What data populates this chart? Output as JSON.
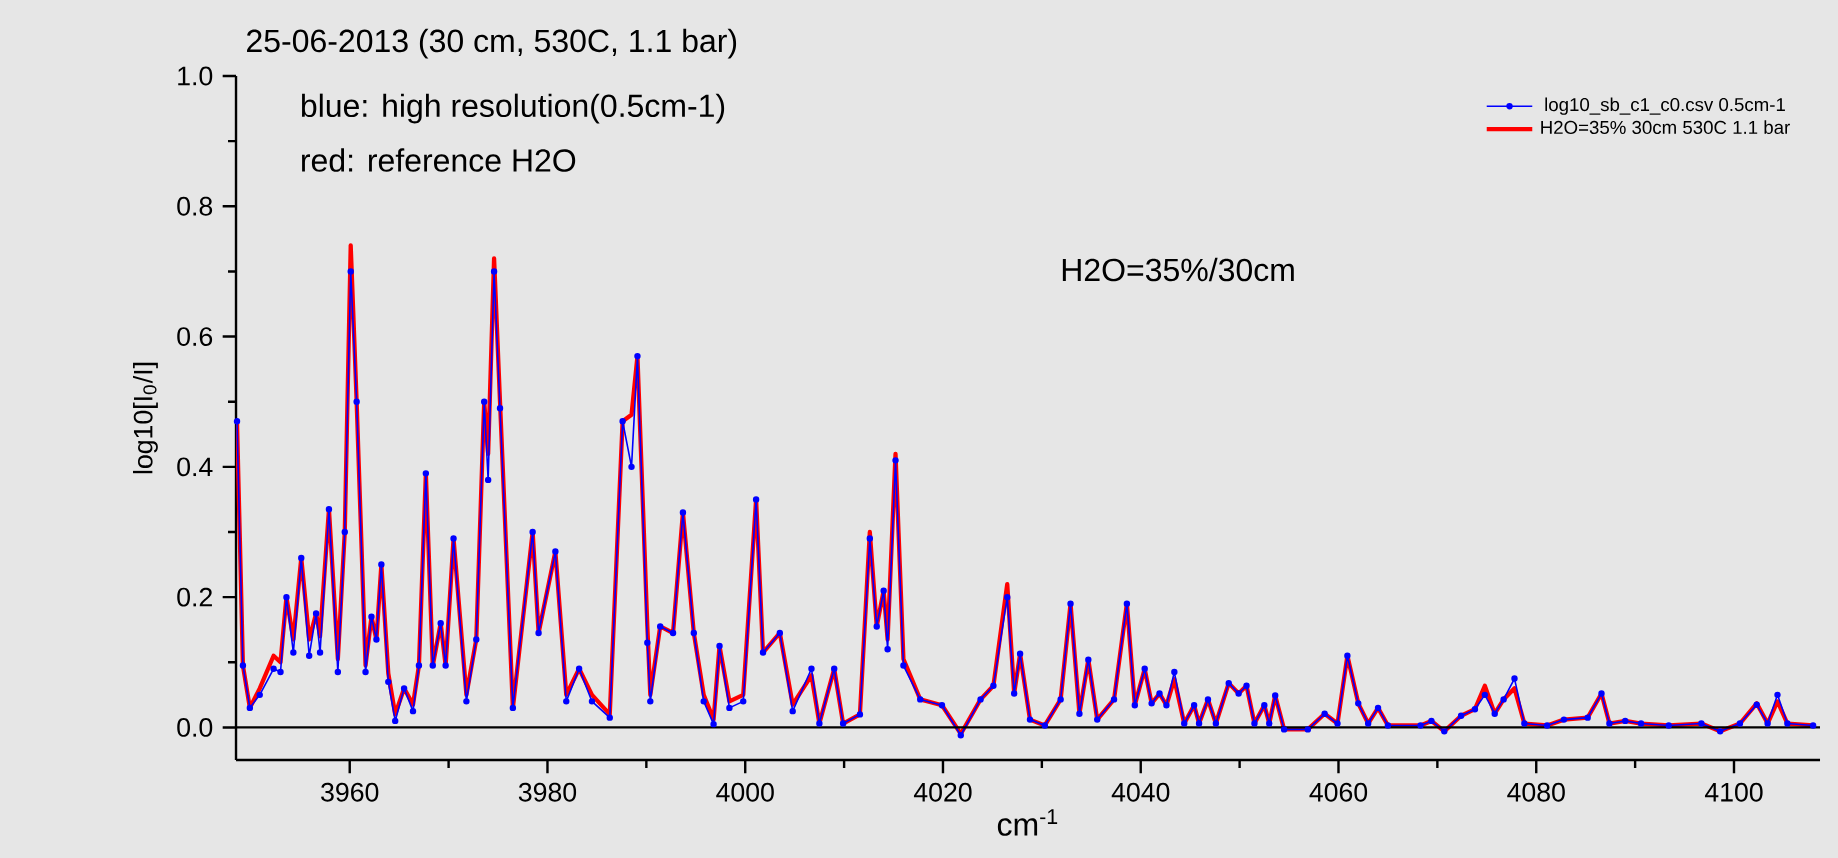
{
  "chart_data": {
    "type": "line",
    "title": "25-06-2013 (30 cm, 530C, 1.1 bar)",
    "xlabel": "cm$^{-1}$",
    "ylabel": "log10[I$_{0}$/I]",
    "annotations": [
      "blue: high resolution(0.5cm-1)",
      "red: reference H2O",
      "H2O=35%/30cm"
    ],
    "xlim": [
      3948.5,
      4108.7
    ],
    "ylim": [
      -0.05,
      1.0
    ],
    "xticks": [
      3960,
      3980,
      4000,
      4020,
      4040,
      4060,
      4080,
      4100
    ],
    "yticks": [
      {
        "value": 0,
        "label": "0.0"
      },
      0.2,
      0.4,
      0.6,
      0.8,
      {
        "value": 1,
        "label": "1.0"
      }
    ],
    "legend": "top right",
    "ref_lines": [
      {
        "axis": "y",
        "value": 0,
        "color": "#000000"
      }
    ],
    "x": [
      3948.6,
      3949.2,
      3949.9,
      3950.9,
      3952.3,
      3953.0,
      3953.6,
      3954.3,
      3955.1,
      3955.9,
      3956.6,
      3957.0,
      3957.9,
      3958.8,
      3959.5,
      3960.1,
      3960.7,
      3961.6,
      3962.2,
      3962.7,
      3963.2,
      3963.9,
      3964.6,
      3965.5,
      3966.4,
      3967.0,
      3967.7,
      3968.4,
      3969.2,
      3969.7,
      3970.5,
      3971.8,
      3972.8,
      3973.6,
      3974.0,
      3974.6,
      3975.2,
      3976.5,
      3978.5,
      3979.1,
      3980.8,
      3981.9,
      3983.2,
      3984.5,
      3986.3,
      3987.6,
      3988.5,
      3989.1,
      3990.1,
      3990.4,
      3991.4,
      3992.7,
      3993.7,
      3994.8,
      3995.8,
      3996.8,
      3997.4,
      3998.4,
      3999.8,
      4001.1,
      4001.8,
      4003.5,
      4004.8,
      4006.7,
      4007.5,
      4009.0,
      4009.9,
      4011.6,
      4012.6,
      4013.3,
      4014.0,
      4014.4,
      4015.2,
      4016.0,
      4017.7,
      4019.9,
      4021.8,
      4023.8,
      4025.1,
      4026.5,
      4027.2,
      4027.8,
      4028.8,
      4030.3,
      4031.9,
      4032.9,
      4033.8,
      4034.7,
      4035.6,
      4037.3,
      4038.6,
      4039.4,
      4040.4,
      4041.1,
      4041.9,
      4042.6,
      4043.4,
      4044.4,
      4045.4,
      4045.9,
      4046.8,
      4047.6,
      4048.9,
      4049.9,
      4050.7,
      4051.5,
      4052.5,
      4053.0,
      4053.6,
      4054.5,
      4056.9,
      4058.6,
      4059.9,
      4060.9,
      4062.0,
      4063.0,
      4064.0,
      4065.0,
      4068.3,
      4069.4,
      4070.7,
      4072.4,
      4073.8,
      4074.8,
      4075.8,
      4076.7,
      4077.8,
      4078.8,
      4081.1,
      4082.8,
      4085.2,
      4086.6,
      4087.4,
      4089.0,
      4090.6,
      4093.4,
      4096.7,
      4098.6,
      4100.6,
      4102.3,
      4103.4,
      4104.4,
      4105.4,
      4108.0
    ],
    "series": [
      {
        "name": "log10_sb_c1_c0.csv 0.5cm-1",
        "color": "#0000ff",
        "marker": "circle",
        "values": [
          0.47,
          0.095,
          0.03,
          0.05,
          0.09,
          0.085,
          0.2,
          0.115,
          0.26,
          0.11,
          0.175,
          0.115,
          0.335,
          0.085,
          0.3,
          0.7,
          0.5,
          0.085,
          0.17,
          0.135,
          0.25,
          0.07,
          0.01,
          0.06,
          0.025,
          0.095,
          0.39,
          0.095,
          0.16,
          0.095,
          0.29,
          0.04,
          0.135,
          0.5,
          0.38,
          0.7,
          0.49,
          0.03,
          0.3,
          0.145,
          0.27,
          0.04,
          0.09,
          0.04,
          0.015,
          0.47,
          0.4,
          0.57,
          0.13,
          0.04,
          0.155,
          0.145,
          0.33,
          0.145,
          0.04,
          0.005,
          0.125,
          0.03,
          0.04,
          0.35,
          0.115,
          0.145,
          0.025,
          0.09,
          0.006,
          0.09,
          0.006,
          0.02,
          0.29,
          0.155,
          0.21,
          0.12,
          0.41,
          0.095,
          0.043,
          0.034,
          -0.012,
          0.043,
          0.064,
          0.2,
          0.052,
          0.113,
          0.012,
          0.003,
          0.043,
          0.19,
          0.021,
          0.104,
          0.012,
          0.043,
          0.19,
          0.034,
          0.09,
          0.037,
          0.052,
          0.034,
          0.085,
          0.006,
          0.034,
          0.006,
          0.043,
          0.006,
          0.068,
          0.052,
          0.064,
          0.006,
          0.034,
          0.006,
          0.049,
          -0.003,
          -0.003,
          0.021,
          0.006,
          0.11,
          0.037,
          0.006,
          0.03,
          0.003,
          0.003,
          0.01,
          -0.006,
          0.018,
          0.028,
          0.05,
          0.021,
          0.043,
          0.075,
          0.006,
          0.003,
          0.012,
          0.015,
          0.052,
          0.006,
          0.01,
          0.006,
          0.003,
          0.006,
          -0.006,
          0.006,
          0.035,
          0.006,
          0.05,
          0.006,
          0.003
        ]
      },
      {
        "name": "H2O=35% 30cm 530C 1.1 bar",
        "color": "#ff0000",
        "marker": "none",
        "values": [
          0.47,
          0.095,
          0.03,
          0.06,
          0.11,
          0.1,
          0.2,
          0.135,
          0.26,
          0.135,
          0.175,
          0.14,
          0.335,
          0.105,
          0.3,
          0.74,
          0.5,
          0.095,
          0.17,
          0.135,
          0.25,
          0.083,
          0.02,
          0.06,
          0.035,
          0.095,
          0.39,
          0.095,
          0.16,
          0.095,
          0.29,
          0.05,
          0.135,
          0.5,
          0.42,
          0.72,
          0.5,
          0.03,
          0.3,
          0.145,
          0.27,
          0.05,
          0.09,
          0.05,
          0.02,
          0.47,
          0.48,
          0.57,
          0.155,
          0.05,
          0.155,
          0.145,
          0.33,
          0.145,
          0.05,
          0.012,
          0.125,
          0.04,
          0.05,
          0.35,
          0.115,
          0.145,
          0.035,
          0.08,
          0.006,
          0.09,
          0.006,
          0.02,
          0.3,
          0.155,
          0.21,
          0.135,
          0.42,
          0.105,
          0.043,
          0.034,
          -0.01,
          0.043,
          0.064,
          0.22,
          0.052,
          0.113,
          0.012,
          0.003,
          0.043,
          0.19,
          0.021,
          0.104,
          0.012,
          0.043,
          0.19,
          0.034,
          0.09,
          0.037,
          0.052,
          0.034,
          0.074,
          0.006,
          0.034,
          0.006,
          0.043,
          0.006,
          0.068,
          0.052,
          0.064,
          0.006,
          0.034,
          0.006,
          0.049,
          -0.003,
          -0.003,
          0.021,
          0.006,
          0.11,
          0.037,
          0.006,
          0.03,
          0.003,
          0.003,
          0.01,
          -0.006,
          0.018,
          0.028,
          0.064,
          0.021,
          0.043,
          0.06,
          0.006,
          0.003,
          0.012,
          0.015,
          0.052,
          0.006,
          0.01,
          0.006,
          0.003,
          0.006,
          -0.006,
          0.006,
          0.037,
          0.006,
          0.04,
          0.006,
          0.003
        ]
      }
    ]
  }
}
